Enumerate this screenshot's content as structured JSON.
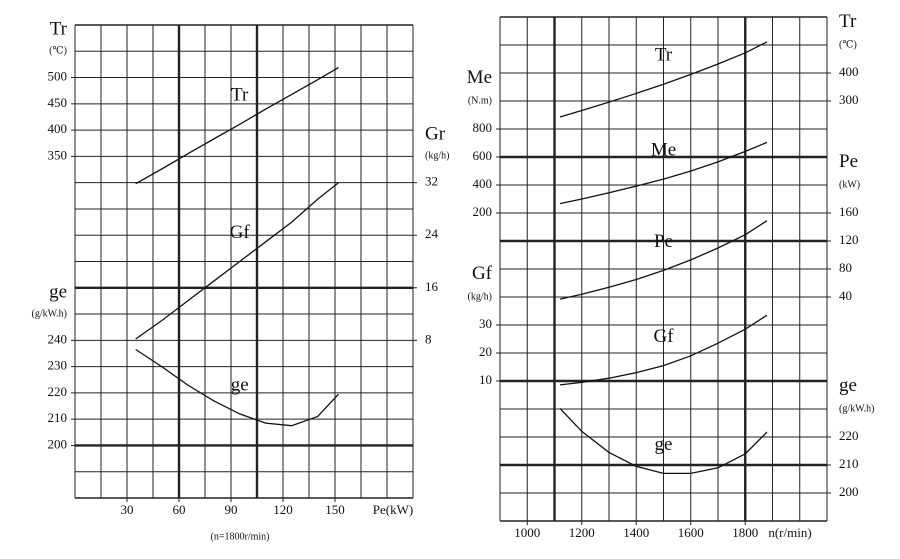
{
  "chart_data": [
    {
      "type": "line",
      "x": [
        35,
        50,
        65,
        80,
        95,
        110,
        125,
        140,
        152
      ],
      "xlim": [
        0,
        195
      ],
      "xticks": [
        30,
        60,
        90,
        120,
        150
      ],
      "xlabel": "Pe(kW)",
      "note": "(n=1800r/min)",
      "series": [
        {
          "name": "Tr",
          "axis_title": "Tr",
          "axis_unit": "(℃)",
          "side": "left",
          "color": "#111",
          "values": [
            298,
            326,
            355,
            383,
            411,
            440,
            468,
            496,
            519
          ],
          "ylim": [
            -300,
            600
          ],
          "yticks": [
            350,
            400,
            450,
            500
          ]
        },
        {
          "name": "Gf",
          "axis_title": "Gr",
          "axis_unit": "(kg/h)",
          "side": "right",
          "color": "#111",
          "values": [
            8.2,
            11,
            14,
            17,
            20,
            23,
            26,
            29.5,
            32
          ],
          "ylim": [
            -16,
            56
          ],
          "yticks": [
            8,
            16,
            24,
            32
          ]
        },
        {
          "name": "ge",
          "axis_title": "ge",
          "axis_unit": "(g/kW.h)",
          "side": "left",
          "color": "#111",
          "values": [
            236.5,
            230,
            223,
            217,
            212,
            208.5,
            207.5,
            211,
            219.5
          ],
          "ylim": [
            180,
            360
          ],
          "yticks": [
            200,
            210,
            220,
            230,
            240
          ]
        }
      ]
    },
    {
      "type": "line",
      "x": [
        1120,
        1200,
        1300,
        1400,
        1500,
        1600,
        1700,
        1800,
        1880
      ],
      "xlim": [
        900,
        2100
      ],
      "xticks": [
        1000,
        1200,
        1400,
        1600,
        1800
      ],
      "xlabel": "n(r/min)",
      "series": [
        {
          "name": "Tr",
          "axis_title": "Tr",
          "axis_unit": "(℃)",
          "side": "right",
          "color": "#111",
          "values": [
            243,
            266,
            296,
            327,
            360,
            395,
            432,
            472,
            511
          ],
          "ylim": [
            -1200,
            600
          ],
          "yticks": [
            300,
            400
          ]
        },
        {
          "name": "Me",
          "axis_title": "Me",
          "axis_unit": "(N.m)",
          "side": "left",
          "color": "#111",
          "values": [
            267,
            300,
            345,
            392,
            442,
            500,
            565,
            640,
            704
          ],
          "ylim": [
            -2000,
            1600
          ],
          "yticks": [
            200,
            400,
            600,
            800
          ]
        },
        {
          "name": "Pe",
          "axis_title": "Pe",
          "axis_unit": "(kW)",
          "side": "right",
          "color": "#111",
          "values": [
            37,
            44,
            54,
            65,
            78,
            93,
            110,
            129,
            149
          ],
          "ylim": [
            -280,
            440
          ],
          "yticks": [
            40,
            80,
            120,
            160
          ]
        },
        {
          "name": "Gf",
          "axis_title": "Gf",
          "axis_unit": "(kg/h)",
          "side": "left",
          "color": "#111",
          "values": [
            8.6,
            9.5,
            11,
            13,
            15.5,
            19,
            23.5,
            28.5,
            33.5
          ],
          "ylim": [
            -40,
            140
          ],
          "yticks": [
            10,
            20,
            30
          ]
        },
        {
          "name": "ge",
          "axis_title": "ge",
          "axis_unit": "(g/kW.h)",
          "side": "right",
          "color": "#111",
          "values": [
            230.2,
            222,
            214.5,
            209.5,
            207,
            207,
            209,
            214,
            221.8
          ],
          "ylim": [
            190,
            370
          ],
          "yticks": [
            200,
            210,
            220
          ]
        }
      ]
    }
  ]
}
